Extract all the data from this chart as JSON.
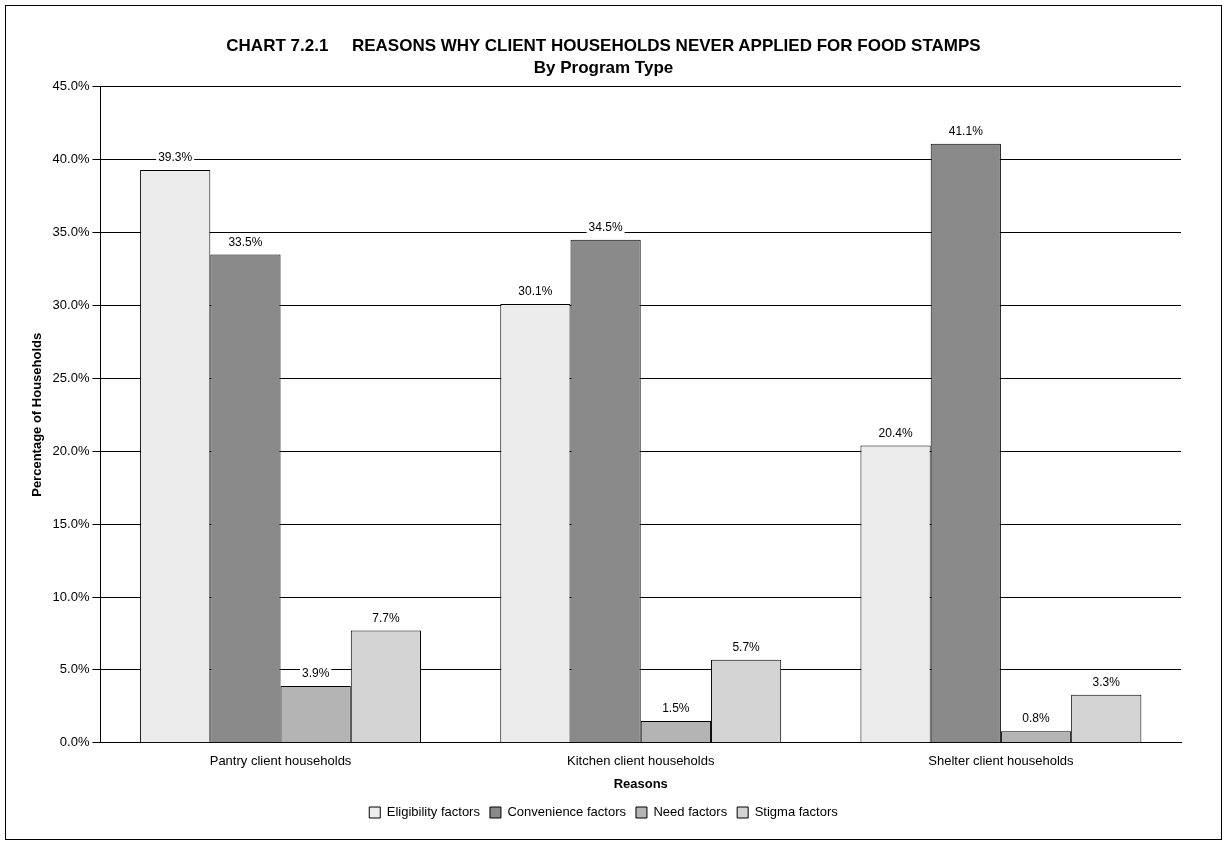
{
  "chart_data": {
    "type": "bar",
    "title": "CHART 7.2.1     REASONS WHY CLIENT HOUSEHOLDS NEVER APPLIED FOR FOOD STAMPS",
    "subtitle": "By Program Type",
    "xlabel": "Reasons",
    "ylabel": "Percentage of Households",
    "categories": [
      "Pantry client households",
      "Kitchen client households",
      "Shelter client households"
    ],
    "series": [
      {
        "name": "Eligibility factors",
        "color": "#ececec",
        "values": [
          39.3,
          30.1,
          20.4
        ],
        "value_labels": [
          "39.3%",
          "30.1%",
          "20.4%"
        ]
      },
      {
        "name": "Convenience factors",
        "color": "#8a8a8a",
        "values": [
          33.5,
          34.5,
          41.1
        ],
        "value_labels": [
          "33.5%",
          "34.5%",
          "41.1%"
        ]
      },
      {
        "name": "Need factors",
        "color": "#b4b4b4",
        "values": [
          3.9,
          1.5,
          0.8
        ],
        "value_labels": [
          "3.9%",
          "1.5%",
          "0.8%"
        ]
      },
      {
        "name": "Stigma factors",
        "color": "#d4d4d4",
        "values": [
          7.7,
          5.7,
          3.3
        ],
        "value_labels": [
          "7.7%",
          "5.7%",
          "3.3%"
        ]
      }
    ],
    "ylim": [
      0,
      45
    ],
    "yticks": [
      {
        "value": 0,
        "label": "0.0%"
      },
      {
        "value": 5,
        "label": "5.0%"
      },
      {
        "value": 10,
        "label": "10.0%"
      },
      {
        "value": 15,
        "label": "15.0%"
      },
      {
        "value": 20,
        "label": "20.0%"
      },
      {
        "value": 25,
        "label": "25.0%"
      },
      {
        "value": 30,
        "label": "30.0%"
      },
      {
        "value": 35,
        "label": "35.0%"
      },
      {
        "value": 40,
        "label": "40.0%"
      },
      {
        "value": 45,
        "label": "45.0%"
      }
    ],
    "grid": "y",
    "legend": "bottom"
  }
}
